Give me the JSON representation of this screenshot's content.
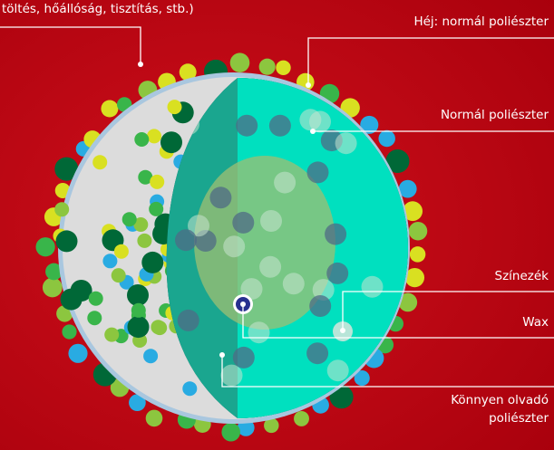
{
  "caption_top": "töltés, hőállóság, tisztítás, stb.)",
  "labels": {
    "shell": "Héj: normál poliészter",
    "normal": "Normál poliészter",
    "colorant": "Színezék",
    "wax": "Wax",
    "low_melt": [
      "Könnyen olvadó",
      "poliészter"
    ]
  }
}
